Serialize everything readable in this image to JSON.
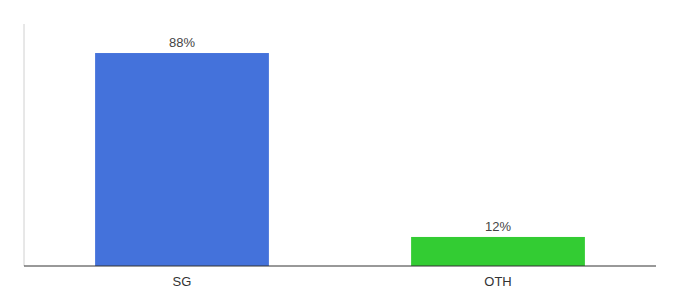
{
  "chart_data": {
    "type": "bar",
    "categories": [
      "SG",
      "OTH"
    ],
    "values": [
      88,
      12
    ],
    "value_labels": [
      "88%",
      "12%"
    ],
    "colors": [
      "#4472db",
      "#33cc33"
    ],
    "ylim": [
      0,
      100
    ],
    "data_labels": true,
    "tick_labels": "x",
    "grid": false
  }
}
